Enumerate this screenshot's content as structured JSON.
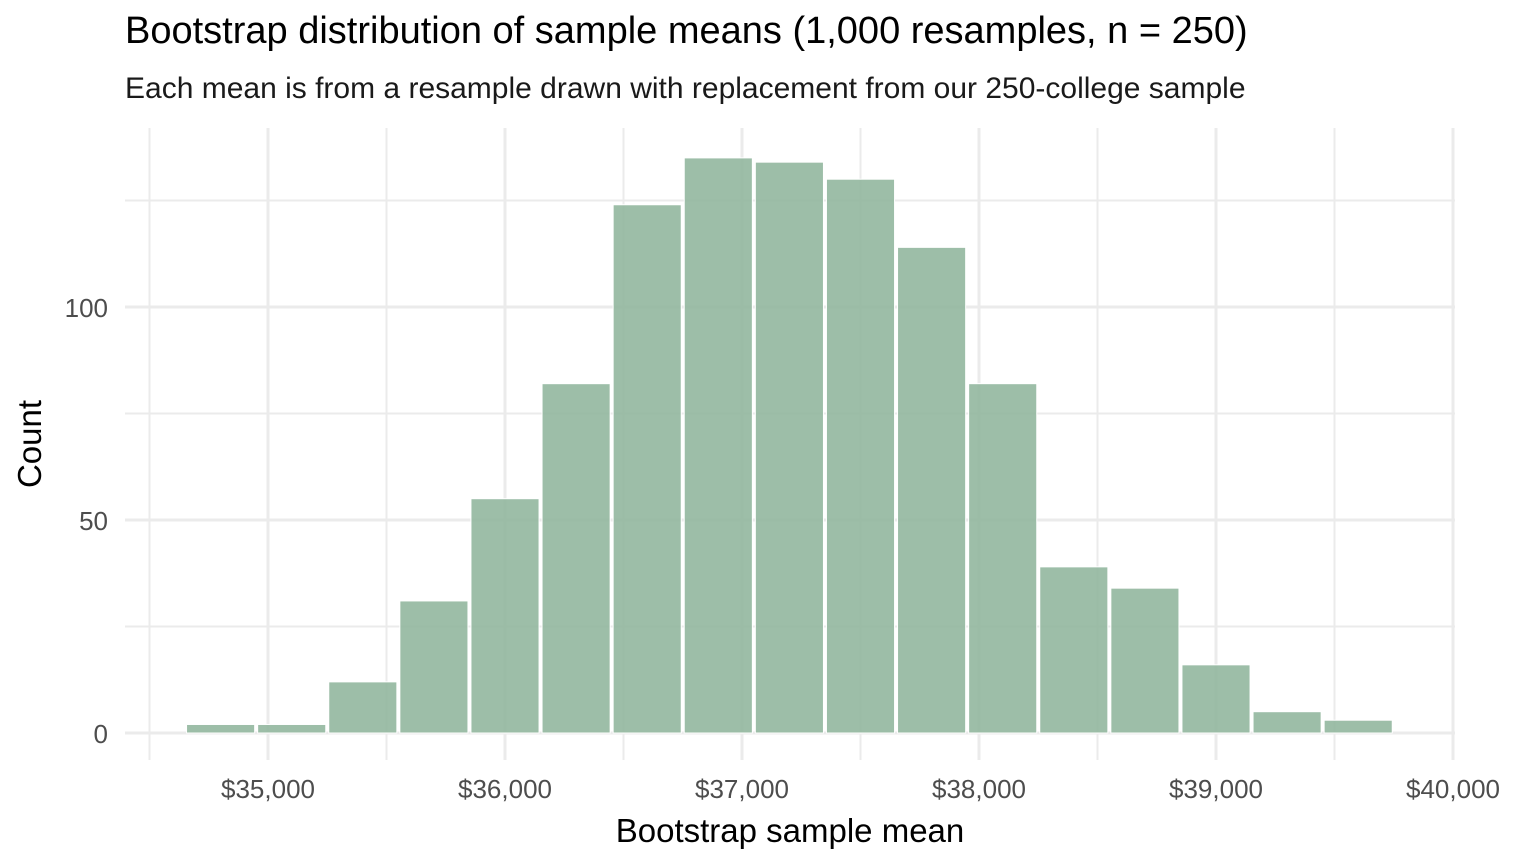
{
  "chart_data": {
    "type": "bar",
    "title": "Bootstrap distribution of sample means (1,000 resamples, n = 250)",
    "subtitle": "Each mean is from a resample drawn with replacement from our 250-college sample",
    "xlabel": "Bootstrap sample mean",
    "ylabel": "Count",
    "xlim": [
      34500,
      40000
    ],
    "ylim": [
      0,
      140
    ],
    "x_ticks": [
      35000,
      36000,
      37000,
      38000,
      39000,
      40000
    ],
    "x_tick_labels": [
      "$35,000",
      "$36,000",
      "$37,000",
      "$38,000",
      "$39,000",
      "$40,000"
    ],
    "y_ticks": [
      0,
      50,
      100
    ],
    "y_tick_labels": [
      "0",
      "50",
      "100"
    ],
    "bin_width": 300,
    "bins": [
      {
        "x0": 34650,
        "x1": 34950,
        "count": 2
      },
      {
        "x0": 34950,
        "x1": 35250,
        "count": 2
      },
      {
        "x0": 35250,
        "x1": 35550,
        "count": 12
      },
      {
        "x0": 35550,
        "x1": 35850,
        "count": 31
      },
      {
        "x0": 35850,
        "x1": 36150,
        "count": 55
      },
      {
        "x0": 36150,
        "x1": 36450,
        "count": 82
      },
      {
        "x0": 36450,
        "x1": 36750,
        "count": 124
      },
      {
        "x0": 36750,
        "x1": 37050,
        "count": 135
      },
      {
        "x0": 37050,
        "x1": 37350,
        "count": 134
      },
      {
        "x0": 37350,
        "x1": 37650,
        "count": 130
      },
      {
        "x0": 37650,
        "x1": 37950,
        "count": 114
      },
      {
        "x0": 37950,
        "x1": 38250,
        "count": 82
      },
      {
        "x0": 38250,
        "x1": 38550,
        "count": 39
      },
      {
        "x0": 38550,
        "x1": 38850,
        "count": 34
      },
      {
        "x0": 38850,
        "x1": 39150,
        "count": 16
      },
      {
        "x0": 39150,
        "x1": 39450,
        "count": 5
      },
      {
        "x0": 39450,
        "x1": 39750,
        "count": 3
      }
    ],
    "bar_color": "#8fb59c",
    "grid": true
  }
}
